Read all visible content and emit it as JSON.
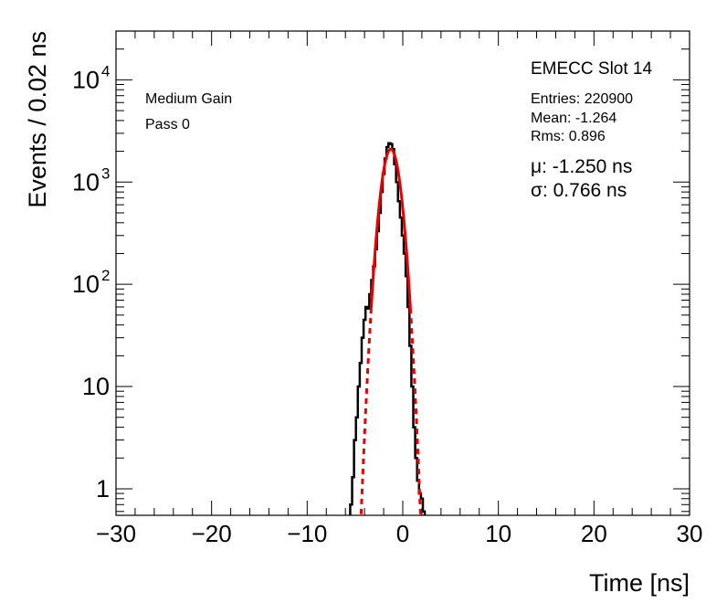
{
  "chart_data": {
    "type": "line",
    "title": "EMECC Slot 14",
    "xlabel": "Time [ns]",
    "ylabel": "Events / 0.02 ns",
    "xlim": [
      -30,
      30
    ],
    "ylim": [
      0.55,
      30000
    ],
    "yscale": "log",
    "x_ticks": [
      -30,
      -20,
      -10,
      0,
      10,
      20,
      30
    ],
    "x_tick_labels": [
      "−30",
      "−20",
      "−10",
      "0",
      "10",
      "20",
      "30"
    ],
    "y_ticks": [
      1,
      10,
      100,
      1000,
      10000
    ],
    "y_tick_labels": [
      {
        "base": "1",
        "exp": ""
      },
      {
        "base": "10",
        "exp": ""
      },
      {
        "base": "10",
        "exp": "2"
      },
      {
        "base": "10",
        "exp": "3"
      },
      {
        "base": "10",
        "exp": "4"
      }
    ],
    "grid": false,
    "annotations": {
      "gain": "Medium Gain",
      "pass": "Pass 0"
    },
    "stats": {
      "entries": "Entries: 220900",
      "mean": "Mean: -1.264",
      "rms": "Rms: 0.896"
    },
    "fit": {
      "mu": "μ: -1.250 ns",
      "sigma": "σ: 0.766 ns",
      "mu_value": -1.25,
      "sigma_value": 0.766,
      "amplitude": 2100,
      "solid_range": [
        -3.3,
        0.8
      ]
    },
    "series": [
      {
        "color": "#000000",
        "x": [
          -5.4,
          -5.2,
          -5.0,
          -4.8,
          -4.6,
          -4.4,
          -4.2,
          -4.0,
          -3.8,
          -3.6,
          -3.4,
          -3.2,
          -3.0,
          -2.8,
          -2.6,
          -2.4,
          -2.2,
          -2.0,
          -1.8,
          -1.6,
          -1.4,
          -1.2,
          -1.0,
          -0.8,
          -0.6,
          -0.4,
          -0.2,
          0.0,
          0.2,
          0.4,
          0.6,
          0.8,
          1.0,
          1.2,
          1.4,
          1.6,
          1.8,
          2.0,
          2.2
        ],
        "y": [
          0.7,
          1.3,
          3.0,
          5.0,
          10.0,
          17.0,
          30.0,
          45.0,
          60.0,
          58.0,
          80.0,
          110.0,
          150.0,
          220.0,
          330.0,
          500.0,
          800.0,
          1200.0,
          1700.0,
          2200.0,
          2400.0,
          2350.0,
          2100.0,
          1500.0,
          1000.0,
          650.0,
          450.0,
          300.0,
          200.0,
          120.0,
          60.0,
          25.0,
          10.0,
          4.0,
          2.0,
          1.2,
          0.9,
          0.8,
          0.6
        ]
      }
    ]
  }
}
